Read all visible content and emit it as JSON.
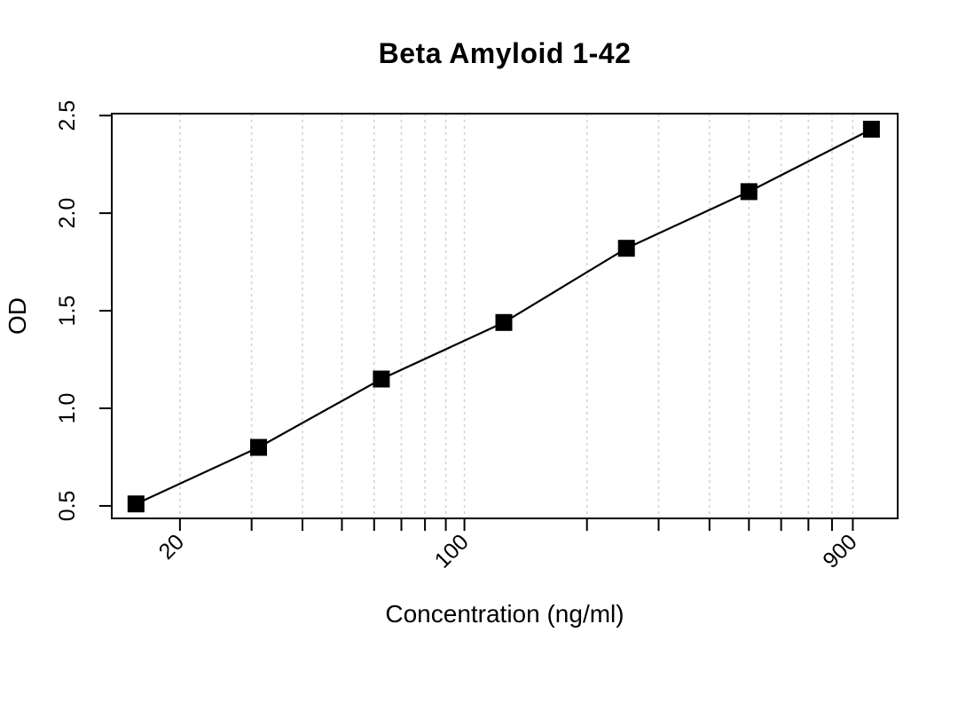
{
  "chart_data": {
    "type": "line",
    "title": "Beta Amyloid 1-42",
    "xlabel": "Concentration (ng/ml)",
    "ylabel": "OD",
    "x_scale": "log10",
    "series": [
      {
        "name": "standard-curve",
        "x": [
          15.6,
          31.2,
          62.5,
          125,
          250,
          500,
          1000
        ],
        "y": [
          0.51,
          0.8,
          1.15,
          1.44,
          1.82,
          2.11,
          2.43
        ],
        "marker": "filled-square",
        "marker_color": "#000000",
        "line_color": "#000000"
      }
    ],
    "x_ticks": [
      20,
      30,
      40,
      50,
      60,
      70,
      80,
      90,
      100,
      200,
      300,
      400,
      500,
      600,
      700,
      800,
      900
    ],
    "x_tick_labels": [
      "20",
      "100",
      "900"
    ],
    "x_labeled_ticks": [
      20,
      100,
      900
    ],
    "x_tick_label_rotation_deg": 45,
    "y_ticks": [
      0.5,
      1.0,
      1.5,
      2.0,
      2.5
    ],
    "y_tick_labels": [
      "0.5",
      "1.0",
      "1.5",
      "2.0",
      "2.5"
    ],
    "xlim": [
      13.6,
      1160
    ],
    "ylim": [
      0.436,
      2.51
    ],
    "grid": "vertical-dashed-at-x-ticks",
    "grid_color": "#d4d4d4",
    "axis_color": "#000000",
    "background": "#ffffff",
    "legend": "none"
  }
}
